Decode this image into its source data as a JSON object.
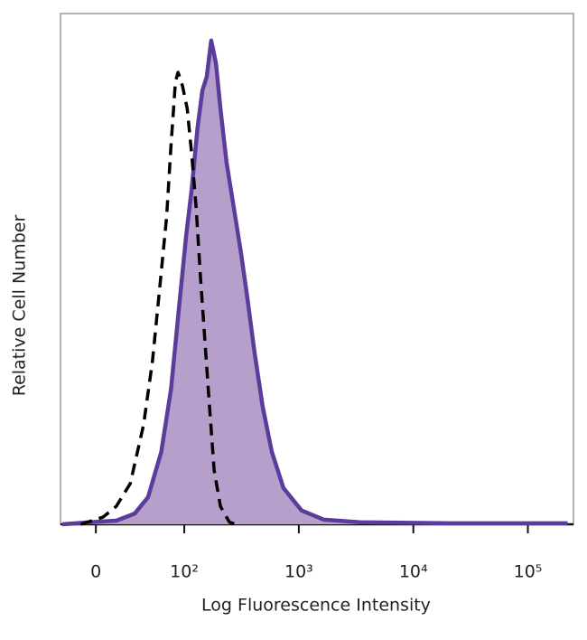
{
  "chart_data": {
    "type": "histogram-overlay",
    "xlabel": "Log Fluorescence Intensity",
    "ylabel": "Relative Cell Number",
    "xlim": [
      -40,
      250000
    ],
    "ylim": [
      0,
      100
    ],
    "xticks": [
      0,
      {
        "value": 100,
        "label": "10²"
      },
      {
        "value": 1000,
        "label": "10³"
      },
      {
        "value": 10000,
        "label": "10⁴"
      },
      {
        "value": 100000,
        "label": "10⁵"
      }
    ],
    "series": [
      {
        "color": "#5b3c9c",
        "fill": "#b69fcb",
        "style": "solid",
        "x": [
          -38,
          -7,
          23,
          44,
          59,
          74,
          85,
          95,
          104,
          116,
          131,
          144,
          157,
          172,
          189,
          207,
          234,
          271,
          313,
          356,
          411,
          484,
          581,
          735,
          1056,
          1661,
          3430,
          21000,
          222000
        ],
        "values": [
          0,
          0.4,
          0.7,
          2.1,
          5.3,
          14.2,
          26.5,
          44.2,
          56.6,
          65.5,
          77.9,
          85,
          87.6,
          94.7,
          90.3,
          81.4,
          70.8,
          61.9,
          53.1,
          44.2,
          33.6,
          23,
          14.2,
          7.1,
          2.7,
          0.9,
          0.4,
          0.2,
          0.2
        ]
      },
      {
        "color": "#000000",
        "style": "dashed",
        "x": [
          -17,
          8,
          23,
          39,
          54,
          64,
          72,
          80,
          85,
          90,
          93,
          98,
          106,
          116,
          127,
          139,
          152,
          166,
          182,
          207,
          248,
          281
        ],
        "values": [
          0,
          1.4,
          3.5,
          8,
          19.5,
          31.9,
          46,
          60.2,
          74.3,
          86.7,
          88.5,
          85.8,
          81.4,
          72.6,
          62,
          47.8,
          35.4,
          23,
          10.6,
          3.5,
          0.4,
          0
        ]
      }
    ]
  }
}
